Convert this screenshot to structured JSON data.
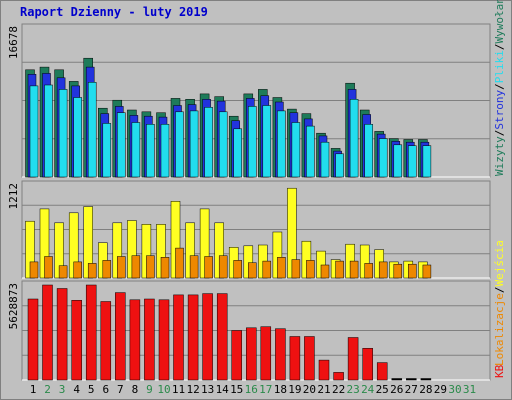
{
  "title": "Raport Dzienny -  luty 2019",
  "colors": {
    "frame": "#c0c0c0",
    "plot_bg": "#c0c0c0",
    "grid": "#808080",
    "title": "#0000cc",
    "wizyty": "#1e7b5a",
    "strony": "#2233dd",
    "pliki": "#22ddee",
    "lokalizacje": "#ee8800",
    "wejscia": "#ffff22",
    "kb": "#ee1111",
    "day_weekday": "#000000",
    "day_weekend": "#2a8a4a"
  },
  "right_labels": {
    "top": [
      "Wizyty",
      "Strony",
      "Pliki",
      "Wywołania"
    ],
    "middle": [
      "Lokalizacje",
      "Wejścia"
    ],
    "bottom": [
      "KB"
    ]
  },
  "chart_data": [
    {
      "type": "bar",
      "panel": "top",
      "ymax_label": "16678",
      "ylim": [
        0,
        16678
      ],
      "categories": [
        "1",
        "2",
        "3",
        "4",
        "5",
        "6",
        "7",
        "8",
        "9",
        "10",
        "11",
        "12",
        "13",
        "14",
        "15",
        "16",
        "17",
        "18",
        "19",
        "20",
        "21",
        "22",
        "23",
        "24",
        "25",
        "26",
        "27",
        "28"
      ],
      "series": [
        {
          "name": "Wywołania",
          "values": [
            12000,
            12300,
            12000,
            10700,
            13300,
            7700,
            8600,
            7500,
            7300,
            7200,
            8800,
            8700,
            9300,
            9000,
            6800,
            9300,
            9800,
            8900,
            7600,
            7100,
            4900,
            3200,
            10500,
            7500,
            5100,
            4300,
            4200,
            4200
          ]
        },
        {
          "name": "Pliki",
          "values": [
            11500,
            11600,
            11100,
            10200,
            12300,
            7100,
            7900,
            6900,
            6800,
            6700,
            8000,
            8100,
            8700,
            8500,
            6300,
            8800,
            9100,
            8400,
            7200,
            6500,
            4600,
            2900,
            9800,
            7000,
            4800,
            4000,
            3900,
            3900
          ]
        },
        {
          "name": "Strony",
          "values": [
            10200,
            10300,
            9800,
            8900,
            10600,
            6000,
            7200,
            6100,
            5900,
            5900,
            7300,
            7400,
            7800,
            7300,
            5400,
            7900,
            8000,
            7400,
            6100,
            5700,
            3900,
            2600,
            8700,
            5900,
            4300,
            3600,
            3500,
            3500
          ]
        },
        {
          "name": "Wizyty",
          "values": [
            8700,
            9000,
            8800,
            7700,
            10100,
            5500,
            6700,
            5700,
            5600,
            5500,
            6600,
            6700,
            7000,
            6800,
            4900,
            7000,
            7500,
            6900,
            5600,
            5300,
            3600,
            2300,
            7300,
            5600,
            4100,
            3400,
            3300,
            3300
          ]
        }
      ]
    },
    {
      "type": "bar",
      "panel": "middle",
      "ymax_label": "1212",
      "ylim": [
        0,
        1212
      ],
      "categories": [
        "1",
        "2",
        "3",
        "4",
        "5",
        "6",
        "7",
        "8",
        "9",
        "10",
        "11",
        "12",
        "13",
        "14",
        "15",
        "16",
        "17",
        "18",
        "19",
        "20",
        "21",
        "22",
        "23",
        "24",
        "25",
        "26",
        "27",
        "28"
      ],
      "series": [
        {
          "name": "Wejścia",
          "values": [
            740,
            900,
            720,
            850,
            930,
            460,
            720,
            750,
            700,
            700,
            1000,
            720,
            900,
            720,
            400,
            420,
            430,
            600,
            1170,
            480,
            350,
            240,
            440,
            430,
            370,
            210,
            220,
            210
          ]
        },
        {
          "name": "Lokalizacje",
          "values": [
            210,
            280,
            160,
            210,
            190,
            230,
            280,
            290,
            290,
            270,
            390,
            290,
            280,
            290,
            230,
            200,
            220,
            270,
            240,
            230,
            170,
            220,
            220,
            190,
            210,
            180,
            180,
            170
          ]
        }
      ]
    },
    {
      "type": "bar",
      "panel": "bottom",
      "ymax_label": "5628873",
      "ylim": [
        0,
        5628873
      ],
      "categories": [
        "1",
        "2",
        "3",
        "4",
        "5",
        "6",
        "7",
        "8",
        "9",
        "10",
        "11",
        "12",
        "13",
        "14",
        "15",
        "16",
        "17",
        "18",
        "19",
        "20",
        "21",
        "22",
        "23",
        "24",
        "25",
        "26",
        "27",
        "28"
      ],
      "series": [
        {
          "name": "KB",
          "values": [
            4800000,
            5628873,
            5420000,
            4720000,
            5628873,
            4650000,
            5180000,
            4750000,
            4800000,
            4750000,
            5040000,
            5040000,
            5120000,
            5120000,
            2930000,
            3090000,
            3160000,
            3040000,
            2580000,
            2580000,
            1180000,
            450000,
            2520000,
            1880000,
            1030000,
            50000,
            50000,
            50000
          ]
        }
      ]
    }
  ],
  "day_labels": [
    "1",
    "2",
    "3",
    "4",
    "5",
    "6",
    "7",
    "8",
    "9",
    "10",
    "11",
    "12",
    "13",
    "14",
    "15",
    "16",
    "17",
    "18",
    "19",
    "20",
    "21",
    "22",
    "23",
    "24",
    "25",
    "26",
    "27",
    "28",
    "29",
    "30",
    "31"
  ],
  "weekend_days": [
    2,
    3,
    9,
    10,
    16,
    17,
    23,
    24,
    30,
    31
  ]
}
